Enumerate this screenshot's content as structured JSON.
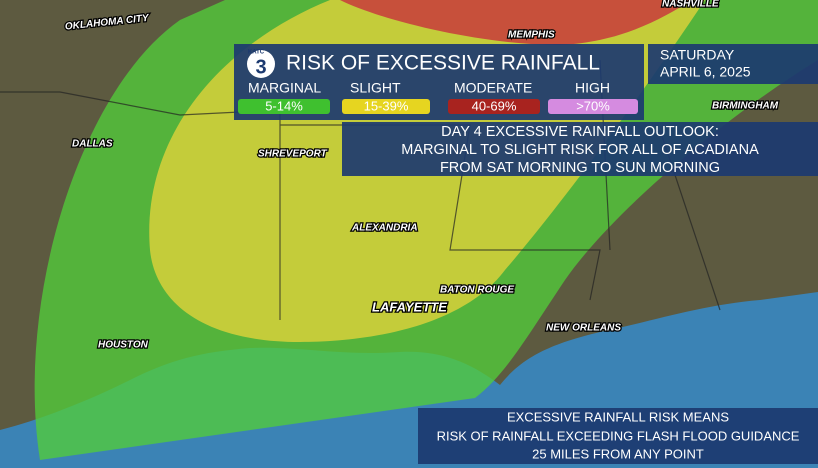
{
  "header": {
    "logo": "KATC",
    "logo_number": "3",
    "title": "RISK OF EXCESSIVE RAINFALL",
    "day": "SATURDAY",
    "date": "APRIL 6, 2025"
  },
  "legend": [
    {
      "label": "MARGINAL",
      "range": "5-14%"
    },
    {
      "label": "SLIGHT",
      "range": "15-39%"
    },
    {
      "label": "MODERATE",
      "range": "40-69%"
    },
    {
      "label": "HIGH",
      "range": ">70%"
    }
  ],
  "outlook": [
    "DAY 4 EXCESSIVE RAINFALL OUTLOOK:",
    "MARGINAL TO SLIGHT RISK FOR ALL OF ACADIANA",
    "FROM SAT MORNING TO SUN MORNING"
  ],
  "footer": [
    "EXCESSIVE RAINFALL RISK MEANS",
    "RISK OF RAINFALL EXCEEDING FLASH FLOOD GUIDANCE",
    "25 MILES FROM ANY POINT"
  ],
  "cities": [
    "OKLAHOMA CITY",
    "MEMPHIS",
    "NASHVILLE",
    "BIRMINGHAM",
    "DALLAS",
    "SHREVEPORT",
    "ALEXANDRIA",
    "BATON ROUGE",
    "LAFAYETTE",
    "NEW ORLEANS",
    "HOUSTON"
  ]
}
